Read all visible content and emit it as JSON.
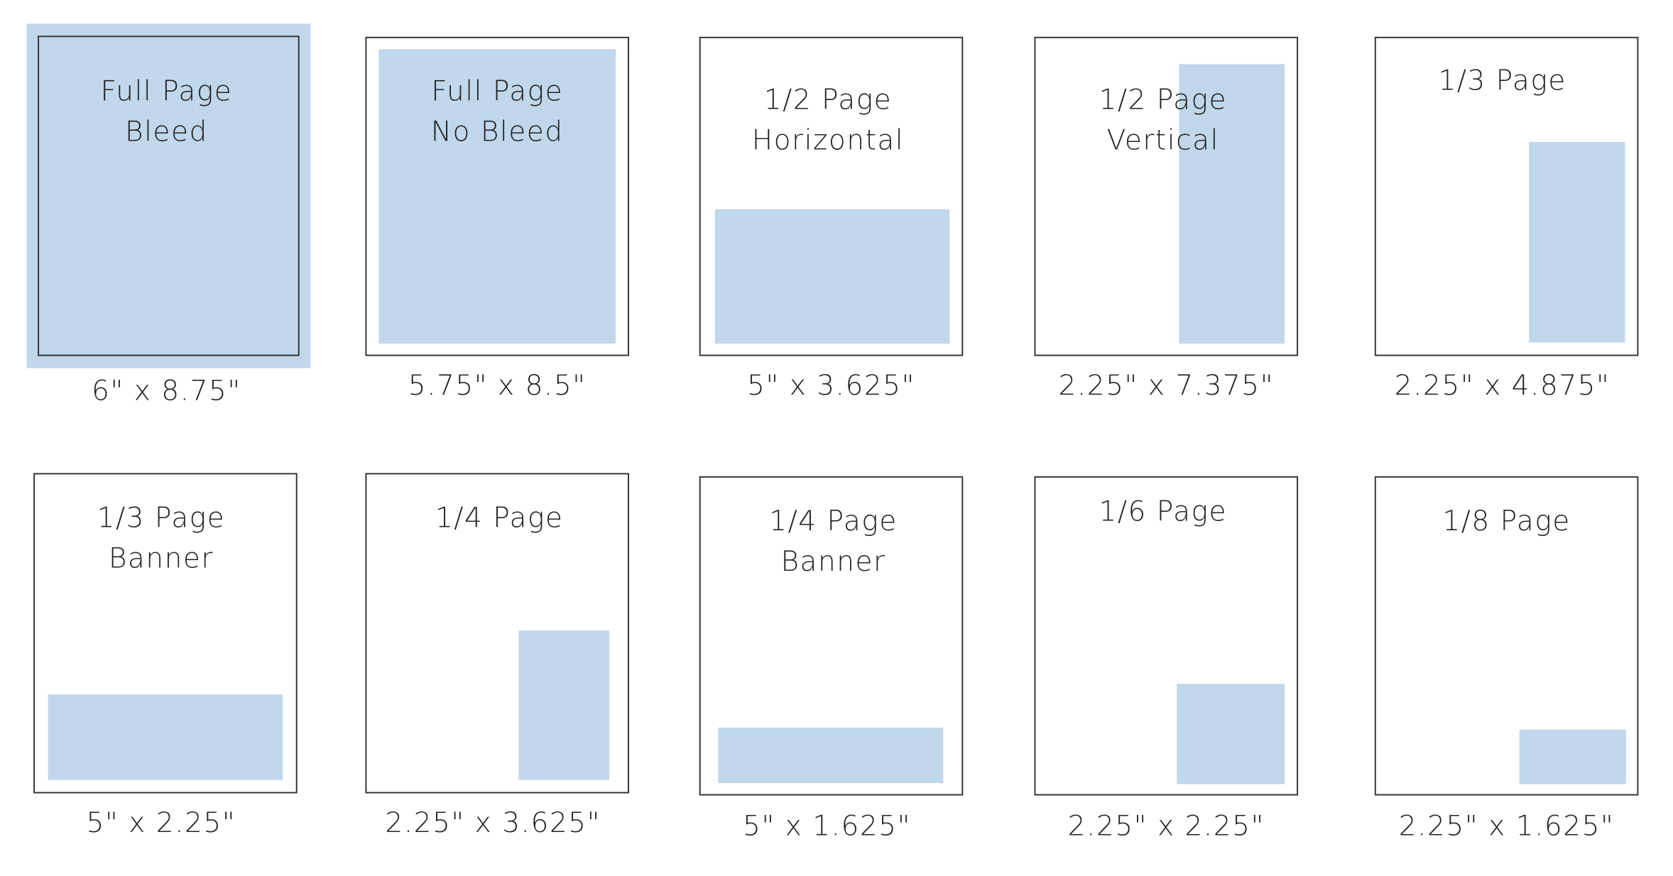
{
  "items": [
    {
      "title": [
        "Full Page",
        "Bleed"
      ],
      "size": "6\" x 8.75\""
    },
    {
      "title": [
        "Full Page",
        "No Bleed"
      ],
      "size": "5.75\" x 8.5\""
    },
    {
      "title": [
        "1/2 Page",
        "Horizontal"
      ],
      "size": "5\" x 3.625\""
    },
    {
      "title": [
        "1/2 Page",
        "Vertical"
      ],
      "size": "2.25\" x 7.375\""
    },
    {
      "title": [
        "1/3 Page"
      ],
      "size": "2.25\" x 4.875\""
    },
    {
      "title": [
        "1/3 Page",
        "Banner"
      ],
      "size": "5\" x 2.25\""
    },
    {
      "title": [
        "1/4 Page"
      ],
      "size": "2.25\" x 3.625\""
    },
    {
      "title": [
        "1/4 Page",
        "Banner"
      ],
      "size": "5\" x 1.625\""
    },
    {
      "title": [
        "1/6 Page"
      ],
      "size": "2.25\" x 2.25\""
    },
    {
      "title": [
        "1/8 Page"
      ],
      "size": "2.25\" x 1.625\""
    }
  ]
}
